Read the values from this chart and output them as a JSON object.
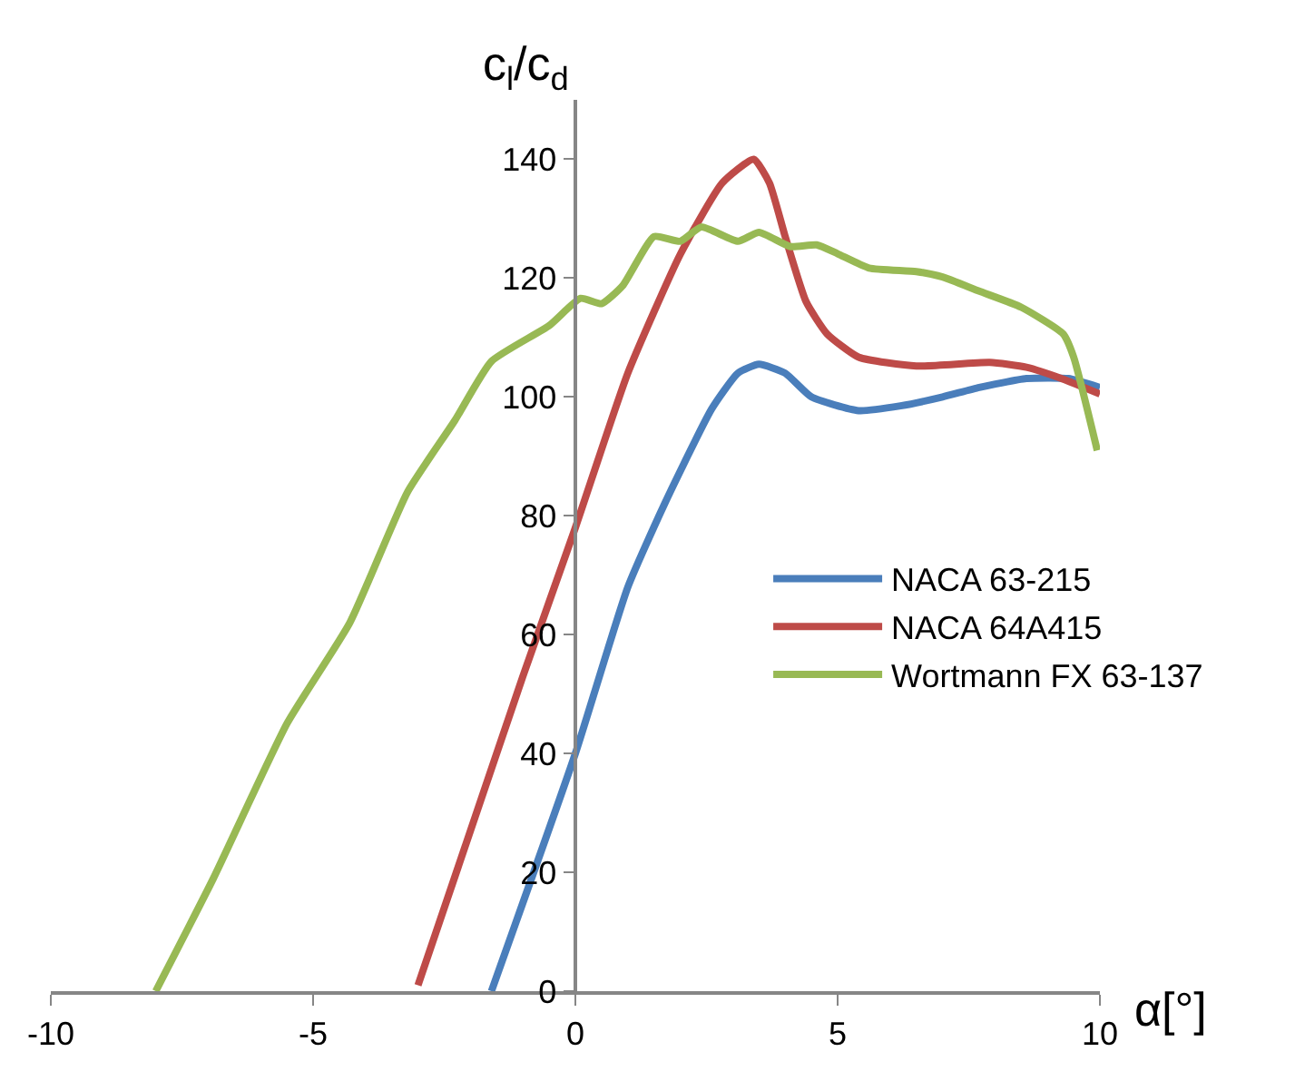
{
  "chart_data": {
    "type": "line",
    "xlabel": "α[°]",
    "ylabel": "c$_{l}$/c$_{d}$",
    "xlim": [
      -10,
      10
    ],
    "xticks": [
      -10,
      -5,
      0,
      5,
      10
    ],
    "ylim": [
      0,
      150
    ],
    "yticks": [
      0,
      20,
      40,
      60,
      80,
      100,
      120,
      140
    ],
    "legend": "right",
    "series": [
      {
        "name": "NACA 63-215",
        "color": "#4a7ebb",
        "x": [
          -1.6,
          0,
          1.0,
          1.7,
          2.6,
          3.1,
          3.5,
          4.0,
          4.5,
          5.4,
          6.2,
          7.0,
          7.7,
          8.6,
          9.4,
          10
        ],
        "values": [
          0,
          40,
          68,
          82,
          98,
          104,
          105.5,
          104,
          100,
          97.7,
          98.5,
          100,
          101.6,
          103.1,
          103.1,
          101.6
        ]
      },
      {
        "name": "NACA 64A415",
        "color": "#be4b48",
        "x": [
          -3,
          -2,
          -1,
          0,
          1,
          2,
          2.8,
          3.4,
          3.7,
          4.0,
          4.4,
          4.8,
          5.4,
          6.5,
          7.9,
          8.6,
          9.3,
          10
        ],
        "values": [
          1,
          27,
          53,
          78,
          104,
          124,
          136,
          140,
          136,
          127,
          116,
          110.6,
          106.7,
          105.2,
          105.8,
          105,
          103,
          100.5
        ]
      },
      {
        "name": "Wortmann FX 63-137",
        "color": "#98b954",
        "x": [
          -8,
          -6.9,
          -5.5,
          -4.3,
          -3.2,
          -2.3,
          -1.6,
          -0.5,
          0.1,
          0.5,
          0.9,
          1.5,
          2.0,
          2.4,
          3.1,
          3.5,
          4.1,
          4.6,
          5.0,
          5.6,
          6.5,
          7.0,
          7.7,
          8.5,
          9.3,
          9.5,
          9.95
        ],
        "values": [
          0,
          19,
          45,
          62,
          84,
          96,
          106,
          112,
          116.6,
          115.7,
          118.7,
          127,
          126.2,
          128.6,
          126.2,
          127.7,
          125.3,
          125.6,
          124.1,
          121.7,
          121.1,
          120.2,
          117.8,
          115.1,
          110.6,
          106.7,
          91
        ]
      }
    ]
  }
}
